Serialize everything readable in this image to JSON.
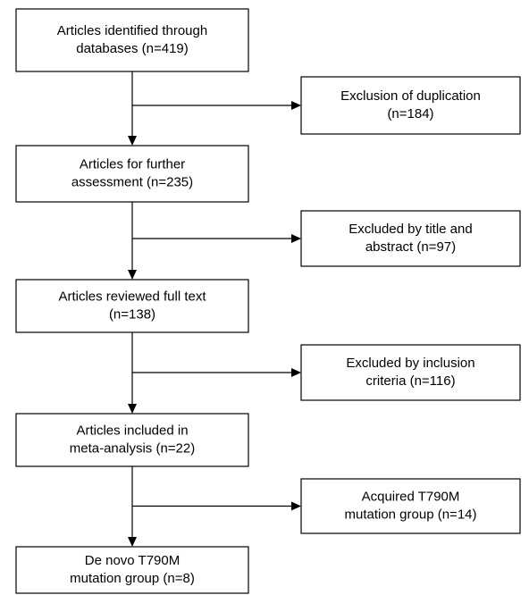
{
  "steps": [
    {
      "lines": [
        "Articles identified through",
        "databases (n=419)"
      ]
    },
    {
      "lines": [
        "Articles for further",
        "assessment (n=235)"
      ]
    },
    {
      "lines": [
        "Articles reviewed full text",
        "(n=138)"
      ]
    },
    {
      "lines": [
        "Articles included in",
        "meta-analysis (n=22)"
      ]
    },
    {
      "lines": [
        "De novo T790M",
        "mutation group (n=8)"
      ]
    }
  ],
  "exclusions": [
    {
      "lines": [
        "Exclusion of duplication",
        "(n=184)"
      ]
    },
    {
      "lines": [
        "Excluded by title and",
        "abstract (n=97)"
      ]
    },
    {
      "lines": [
        "Excluded by inclusion",
        "criteria (n=116)"
      ]
    },
    {
      "lines": [
        "Acquired T790M",
        "mutation group (n=14)"
      ]
    }
  ]
}
